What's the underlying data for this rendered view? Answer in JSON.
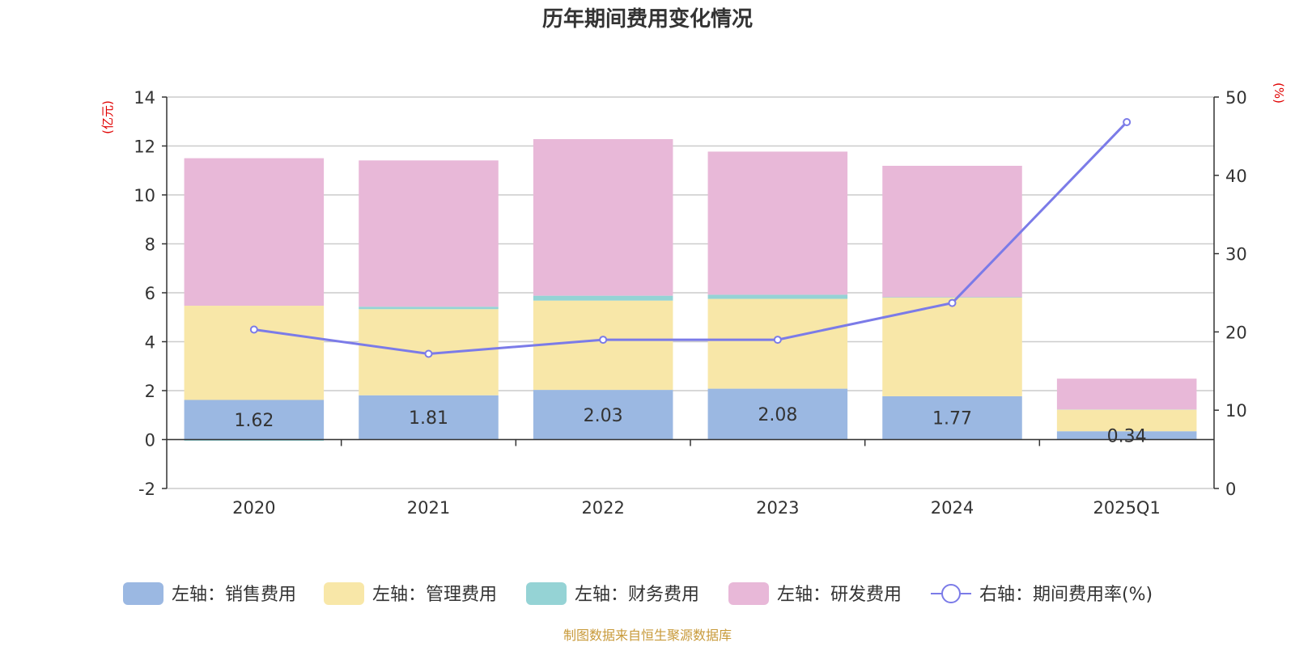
{
  "chart_data": {
    "type": "bar",
    "title": "历年期间费用变化情况",
    "categories": [
      "2020",
      "2021",
      "2022",
      "2023",
      "2024",
      "2025Q1"
    ],
    "y_left": {
      "label": "(亿元)",
      "range": [
        -2,
        14
      ],
      "ticks": [
        -2,
        0,
        2,
        4,
        6,
        8,
        10,
        12,
        14
      ]
    },
    "y_right": {
      "label": "(%)",
      "range": [
        0,
        50
      ],
      "ticks": [
        0,
        10,
        20,
        30,
        40,
        50
      ]
    },
    "series": [
      {
        "name": "左轴：销售费用",
        "type": "stacked-bar",
        "axis": "left",
        "color": "#9bb8e2",
        "values": [
          1.62,
          1.81,
          2.03,
          2.08,
          1.77,
          0.34
        ],
        "labels": [
          "1.62",
          "1.81",
          "2.03",
          "2.08",
          "1.77",
          "0.34"
        ]
      },
      {
        "name": "左轴：管理费用",
        "type": "stacked-bar",
        "axis": "left",
        "color": "#f8e7a8",
        "values": [
          3.85,
          3.52,
          3.65,
          3.67,
          4.03,
          0.88
        ]
      },
      {
        "name": "左轴：财务费用",
        "type": "stacked-bar",
        "axis": "left",
        "color": "#95d3d5",
        "values": [
          -0.05,
          0.1,
          0.2,
          0.17,
          0.02,
          0.01
        ]
      },
      {
        "name": "左轴：研发费用",
        "type": "stacked-bar",
        "axis": "left",
        "color": "#e8b8d8",
        "values": [
          6.03,
          5.98,
          6.4,
          5.85,
          5.37,
          1.26
        ]
      },
      {
        "name": "右轴：期间费用率(%)",
        "type": "line",
        "axis": "right",
        "color": "#7b7be8",
        "values": [
          20.3,
          17.2,
          19.0,
          19.0,
          23.7,
          46.8
        ]
      }
    ],
    "grid": true,
    "legend_position": "bottom"
  },
  "source_text": "制图数据来自恒生聚源数据库",
  "colors": {
    "title": "#333333",
    "axis_label": "#e00000",
    "source": "#c89a3a",
    "grid": "#cccccc"
  }
}
